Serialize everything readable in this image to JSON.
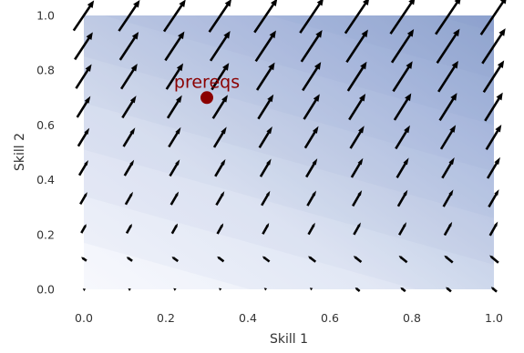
{
  "chart_data": {
    "type": "quiver",
    "xlabel": "Skill 1",
    "ylabel": "Skill 2",
    "xlim": [
      0.0,
      1.0
    ],
    "ylim": [
      0.0,
      1.0
    ],
    "xticks": [
      "0.0",
      "0.2",
      "0.4",
      "0.6",
      "0.8",
      "1.0"
    ],
    "yticks": [
      "0.0",
      "0.2",
      "0.4",
      "0.6",
      "0.8",
      "1.0"
    ],
    "grid": false,
    "background": "filled contour, light lavender-white at bottom-left to steel blue at top-right",
    "grid_x": [
      0.0,
      0.111,
      0.222,
      0.333,
      0.444,
      0.556,
      0.667,
      0.778,
      0.889,
      1.0
    ],
    "grid_y": [
      0.0,
      0.111,
      0.222,
      0.333,
      0.444,
      0.556,
      0.667,
      0.778,
      0.889,
      1.0
    ],
    "vector_field": "arrows point up and slightly right; magnitude grows with Skill 2 and Skill 1",
    "arrow_color": "#000000",
    "annotation": {
      "text": "prereqs",
      "x": 0.3,
      "y": 0.7,
      "color": "#8b0000"
    }
  }
}
